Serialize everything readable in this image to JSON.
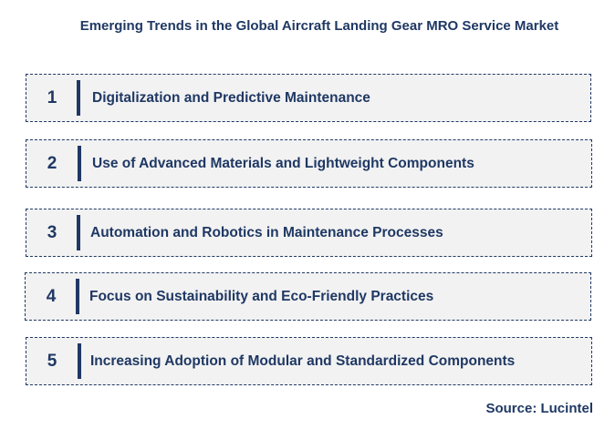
{
  "title": "Emerging Trends in the Global Aircraft Landing Gear MRO Service Market",
  "trends": [
    {
      "number": "1",
      "label": "Digitalization and Predictive Maintenance"
    },
    {
      "number": "2",
      "label": "Use of Advanced Materials and Lightweight Components"
    },
    {
      "number": "3",
      "label": "Automation and Robotics in Maintenance Processes"
    },
    {
      "number": "4",
      "label": "Focus on Sustainability and Eco-Friendly Practices"
    },
    {
      "number": "5",
      "label": "Increasing Adoption of Modular and Standardized Components"
    }
  ],
  "source": "Source: Lucintel",
  "colors": {
    "text": "#1f3864",
    "box_fill": "#f2f2f2",
    "box_border": "#203864"
  }
}
